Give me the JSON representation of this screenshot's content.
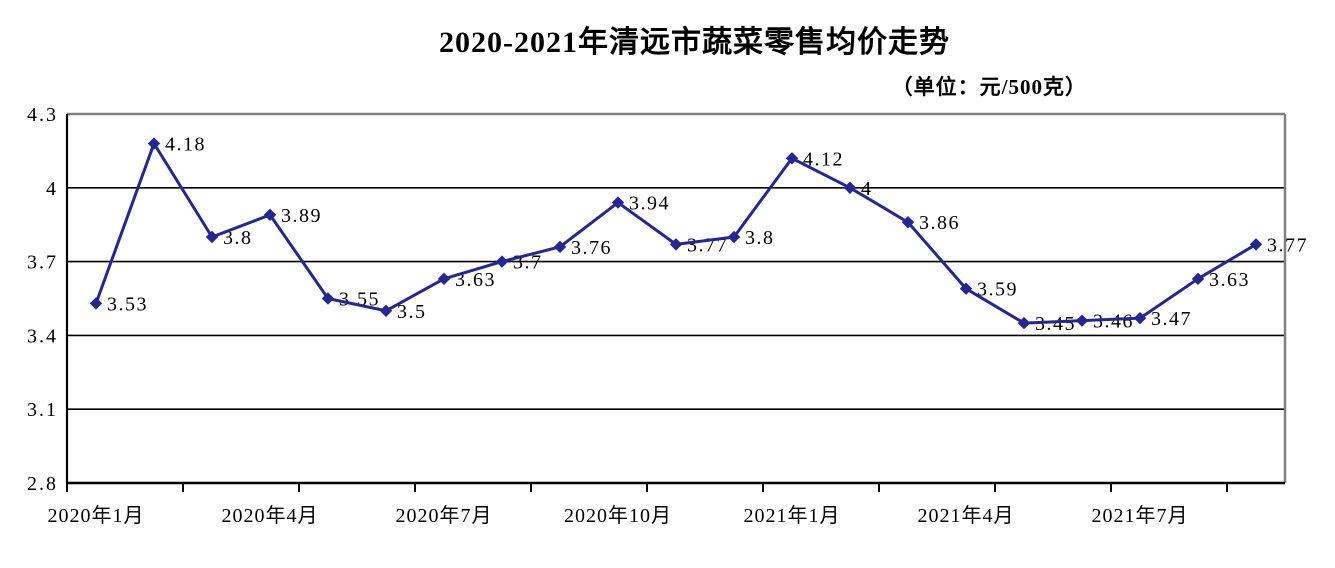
{
  "chart_data": {
    "type": "line",
    "title": "2020-2021年清远市蔬菜零售均价走势",
    "subtitle": "（单位：元/500克）",
    "values": [
      3.53,
      4.18,
      3.8,
      3.89,
      3.55,
      3.5,
      3.63,
      3.7,
      3.76,
      3.94,
      3.77,
      3.8,
      4.12,
      4,
      3.86,
      3.59,
      3.45,
      3.46,
      3.47,
      3.63,
      3.77
    ],
    "point_labels": [
      "3.53",
      "4.18",
      "3.8",
      "3.89",
      "3.55",
      "3.5",
      "3.63",
      "3.7",
      "3.76",
      "3.94",
      "3.77",
      "3.8",
      "4.12",
      "4",
      "3.86",
      "3.59",
      "3.45",
      "3.46",
      "3.47",
      "3.63",
      "3.77"
    ],
    "x_axis": {
      "tick_labels": [
        {
          "index": 0,
          "label": "2020年1月"
        },
        {
          "index": 3,
          "label": "2020年4月"
        },
        {
          "index": 6,
          "label": "2020年7月"
        },
        {
          "index": 9,
          "label": "2020年10月"
        },
        {
          "index": 12,
          "label": "2021年1月"
        },
        {
          "index": 15,
          "label": "2021年4月"
        },
        {
          "index": 18,
          "label": "2021年7月"
        }
      ],
      "tick_mark_every": 2
    },
    "y_axis": {
      "min": 2.8,
      "max": 4.3,
      "step": 0.3,
      "tick_values": [
        4.3,
        4,
        3.7,
        3.4,
        3.1,
        2.8
      ],
      "tick_labels": [
        "4.3",
        "4",
        "3.7",
        "3.4",
        "3.1",
        "2.8"
      ]
    },
    "grid": "horizontal",
    "legend": "none",
    "colors": {
      "line": "#26268f",
      "marker": "#26268f",
      "gridline": "#000000",
      "axis": "#000000",
      "plot_border": "#808080",
      "text": "#000000",
      "background": "#ffffff"
    }
  }
}
